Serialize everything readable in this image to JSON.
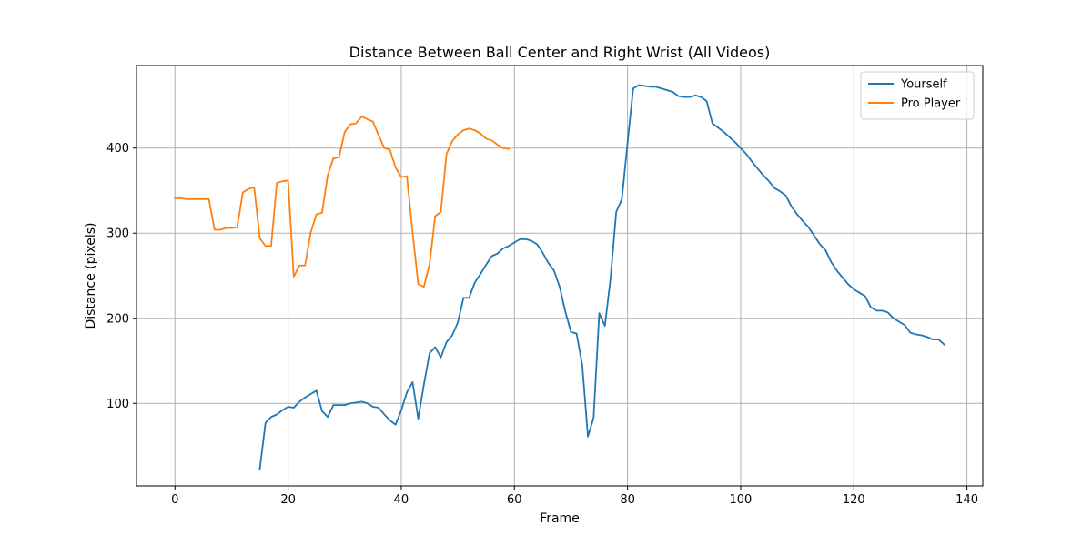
{
  "chart_data": {
    "type": "line",
    "title": "Distance Between Ball Center and Right Wrist (All Videos)",
    "xlabel": "Frame",
    "ylabel": "Distance (pixels)",
    "xlim": [
      -6.8,
      142.8
    ],
    "ylim": [
      3,
      497
    ],
    "xticks": [
      0,
      20,
      40,
      60,
      80,
      100,
      120,
      140
    ],
    "yticks": [
      100,
      200,
      300,
      400
    ],
    "grid": true,
    "legend_position": "top-right",
    "series": [
      {
        "name": "Yourself",
        "color": "#1f77b4",
        "x": [
          15,
          16,
          17,
          18,
          19,
          20,
          21,
          22,
          23,
          24,
          25,
          26,
          27,
          28,
          29,
          30,
          31,
          32,
          33,
          34,
          35,
          36,
          37,
          38,
          39,
          40,
          41,
          42,
          43,
          44,
          45,
          46,
          47,
          48,
          49,
          50,
          51,
          52,
          53,
          54,
          55,
          56,
          57,
          58,
          59,
          60,
          61,
          62,
          63,
          64,
          65,
          66,
          67,
          68,
          69,
          70,
          71,
          72,
          73,
          74,
          75,
          76,
          77,
          78,
          79,
          80,
          81,
          82,
          83,
          84,
          85,
          86,
          87,
          88,
          89,
          90,
          91,
          92,
          93,
          94,
          95,
          96,
          97,
          98,
          99,
          100,
          101,
          102,
          103,
          104,
          105,
          106,
          107,
          108,
          109,
          110,
          111,
          112,
          113,
          114,
          115,
          116,
          117,
          118,
          119,
          120,
          121,
          122,
          123,
          124,
          125,
          126,
          127,
          128,
          129,
          130,
          131,
          132,
          133,
          134,
          135,
          136
        ],
        "y": [
          23,
          77,
          84,
          87,
          92,
          96,
          95,
          102,
          107,
          111,
          115,
          91,
          84,
          98,
          98,
          98,
          100,
          101,
          102,
          100,
          96,
          95,
          87,
          80,
          75,
          92,
          113,
          125,
          82,
          122,
          159,
          166,
          154,
          172,
          180,
          195,
          224,
          224,
          242,
          252,
          263,
          273,
          276,
          282,
          285,
          289,
          293,
          293,
          291,
          287,
          277,
          265,
          256,
          237,
          208,
          184,
          182,
          145,
          61,
          83,
          206,
          191,
          247,
          325,
          340,
          406,
          470,
          474,
          473,
          472,
          472,
          470,
          468,
          466,
          461,
          460,
          460,
          462,
          460,
          455,
          429,
          424,
          419,
          413,
          407,
          400,
          393,
          384,
          376,
          368,
          361,
          353,
          349,
          344,
          331,
          322,
          314,
          307,
          297,
          287,
          280,
          266,
          256,
          248,
          240,
          234,
          230,
          226,
          213,
          209,
          209,
          207,
          200,
          196,
          192,
          183,
          181,
          180,
          178,
          175,
          175,
          169
        ]
      },
      {
        "name": "Pro Player",
        "color": "#ff7f0e",
        "x": [
          0,
          1,
          2,
          3,
          4,
          5,
          6,
          7,
          8,
          9,
          10,
          11,
          12,
          13,
          14,
          15,
          16,
          17,
          18,
          19,
          20,
          21,
          22,
          23,
          24,
          25,
          26,
          27,
          28,
          29,
          30,
          31,
          32,
          33,
          34,
          35,
          36,
          37,
          38,
          39,
          40,
          41,
          42,
          43,
          44,
          45,
          46,
          47,
          48,
          49,
          50,
          51,
          52,
          53,
          54,
          55,
          56,
          57,
          58,
          59
        ],
        "y": [
          341,
          341,
          340,
          340,
          340,
          340,
          340,
          304,
          304,
          306,
          306,
          307,
          348,
          352,
          354,
          294,
          285,
          285,
          359,
          361,
          362,
          249,
          262,
          262,
          301,
          322,
          324,
          368,
          388,
          389,
          419,
          428,
          429,
          437,
          434,
          431,
          415,
          400,
          398,
          377,
          366,
          367,
          301,
          240,
          237,
          263,
          320,
          325,
          393,
          408,
          416,
          421,
          423,
          421,
          417,
          411,
          409,
          404,
          400,
          399
        ]
      }
    ]
  }
}
